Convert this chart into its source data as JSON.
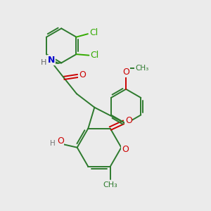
{
  "bg_color": "#ebebeb",
  "bond_color": "#2d7a2d",
  "atom_colors": {
    "O": "#cc0000",
    "N": "#0000cc",
    "Cl": "#33aa00",
    "H": "#555555",
    "C": "#2d7a2d"
  },
  "figure_size": [
    3.0,
    3.0
  ],
  "dpi": 100
}
